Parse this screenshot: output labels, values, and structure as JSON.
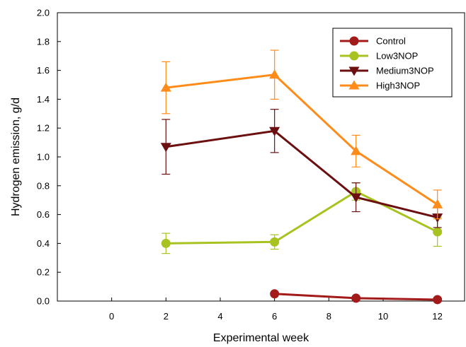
{
  "chart_data": {
    "type": "line",
    "title": "",
    "xlabel": "Experimental week",
    "ylabel": "Hydrogen emission, g/d",
    "xlim": [
      -2,
      13
    ],
    "ylim": [
      0,
      2.0
    ],
    "x_ticks": [
      0,
      2,
      4,
      6,
      8,
      10,
      12
    ],
    "x_tick_labels": [
      "0",
      "2",
      "4",
      "6",
      "8",
      "10",
      "12"
    ],
    "y_ticks": [
      0.0,
      0.2,
      0.4,
      0.6,
      0.8,
      1.0,
      1.2,
      1.4,
      1.6,
      1.8,
      2.0
    ],
    "y_tick_labels": [
      "0.0",
      "0.2",
      "0.4",
      "0.6",
      "0.8",
      "1.0",
      "1.2",
      "1.4",
      "1.6",
      "1.8",
      "2.0"
    ],
    "grid": false,
    "legend_position": "top-right",
    "series": [
      {
        "name": "Control",
        "color": "#a31a1a",
        "marker": "circle",
        "x": [
          6,
          9,
          12
        ],
        "values": [
          0.05,
          0.02,
          0.01
        ],
        "errors": [
          0.0,
          0.0,
          0.0
        ]
      },
      {
        "name": "Low3NOP",
        "color": "#a8c31f",
        "marker": "circle",
        "x": [
          2,
          6,
          9,
          12
        ],
        "values": [
          0.4,
          0.41,
          0.76,
          0.48
        ],
        "errors": [
          0.07,
          0.05,
          0.06,
          0.1
        ]
      },
      {
        "name": "Medium3NOP",
        "color": "#6b0f10",
        "marker": "triangle-down",
        "x": [
          2,
          6,
          9,
          12
        ],
        "values": [
          1.07,
          1.18,
          0.72,
          0.58
        ],
        "errors": [
          0.19,
          0.15,
          0.1,
          0.07
        ]
      },
      {
        "name": "High3NOP",
        "color": "#ff8c1a",
        "marker": "triangle-up",
        "x": [
          2,
          6,
          9,
          12
        ],
        "values": [
          1.48,
          1.57,
          1.04,
          0.67
        ],
        "errors": [
          0.18,
          0.17,
          0.11,
          0.1
        ]
      }
    ]
  }
}
